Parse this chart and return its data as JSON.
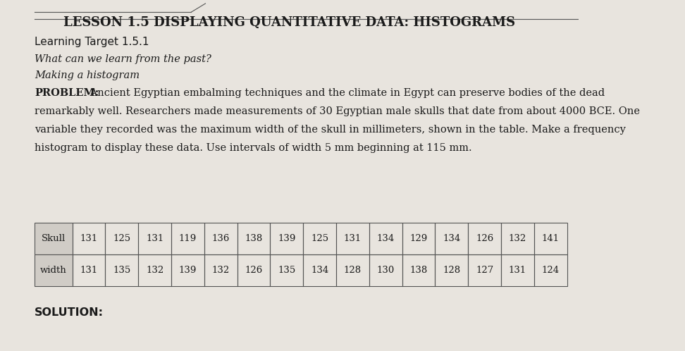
{
  "title": "LESSON 1.5 DISPLAYING QUANTITATIVE DATA: HISTOGRAMS",
  "learning_target": "Learning Target 1.5.1",
  "italic_line1": "What can we learn from the past?",
  "italic_line2": "Making a histogram",
  "problem_label": "PROBLEM:",
  "problem_text": " Ancient Egyptian embalming techniques and the climate in Egypt can preserve bodies of the dead\nremarkably well. Researchers made measurements of 30 Egyptian male skulls that date from about 4000 BCE. One\nvariable they recorded was the maximum width of the skull in millimeters, shown in the table. Make a frequency\nhistogram to display these data. Use intervals of width 5 mm beginning at 115 mm.",
  "row1_label": "Skull",
  "row2_label": "width",
  "row1_data": [
    131,
    125,
    131,
    119,
    136,
    138,
    139,
    125,
    131,
    134,
    129,
    134,
    126,
    132,
    141
  ],
  "row2_data": [
    131,
    135,
    132,
    139,
    132,
    126,
    135,
    134,
    128,
    130,
    138,
    128,
    127,
    131,
    124
  ],
  "solution_label": "SOLUTION:",
  "bg_color": "#e8e4de",
  "title_color": "#1a1a1a",
  "text_color": "#1a1a1a",
  "table_header_bg": "#d0ccc6",
  "title_font_size": 13,
  "body_font_size": 10.5,
  "small_font_size": 9.5
}
